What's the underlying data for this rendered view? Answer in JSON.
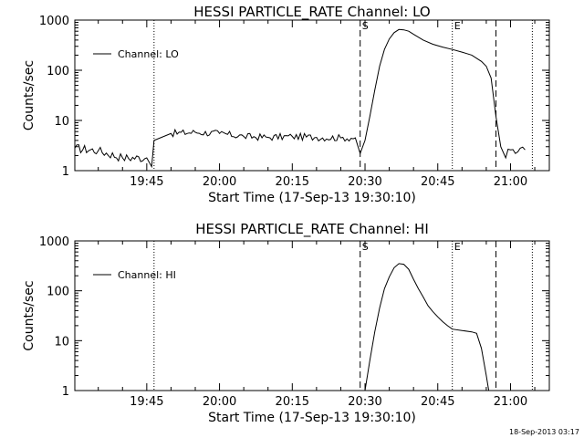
{
  "chart_data": [
    {
      "type": "line",
      "title": "HESSI PARTICLE_RATE Channel: LO",
      "xlabel": "Start Time (17-Sep-13 19:30:10)",
      "ylabel": "Counts/sec",
      "yscale": "log",
      "ylim": [
        1,
        1000
      ],
      "xlim": [
        "19:30:10",
        "21:08:00"
      ],
      "x_ticks": [
        "19:45",
        "20:00",
        "20:15",
        "20:30",
        "20:45",
        "21:00"
      ],
      "y_ticks": [
        "1",
        "10",
        "100",
        "1000"
      ],
      "legend": {
        "position": "top-left",
        "entries": [
          "Channel: LO"
        ]
      },
      "markers": [
        {
          "time": "20:29:00",
          "style": "dashed",
          "label": "S"
        },
        {
          "time": "20:57:00",
          "style": "dashed",
          "label": ""
        },
        {
          "time": "19:46:30",
          "style": "dotted",
          "label": ""
        },
        {
          "time": "20:48:00",
          "style": "dotted",
          "label": "E"
        },
        {
          "time": "21:04:30",
          "style": "dotted",
          "label": ""
        }
      ],
      "series": [
        {
          "name": "Channel: LO",
          "x": [
            "19:30:10",
            "19:35:00",
            "19:40:00",
            "19:45:00",
            "19:46:00",
            "19:46:30",
            "19:50:00",
            "19:55:00",
            "20:00:00",
            "20:05:00",
            "20:10:00",
            "20:15:00",
            "20:20:00",
            "20:25:00",
            "20:28:00",
            "20:29:00",
            "20:30:00",
            "20:31:00",
            "20:32:00",
            "20:33:00",
            "20:34:00",
            "20:35:00",
            "20:36:00",
            "20:37:00",
            "20:38:00",
            "20:39:00",
            "20:40:00",
            "20:42:00",
            "20:44:00",
            "20:46:00",
            "20:48:00",
            "20:50:00",
            "20:52:00",
            "20:54:00",
            "20:55:00",
            "20:56:00",
            "20:57:00",
            "20:58:00",
            "20:59:00",
            "21:00:00",
            "21:01:00",
            "21:02:00",
            "21:03:00"
          ],
          "y": [
            2.8,
            2.5,
            1.8,
            1.8,
            1.2,
            4.0,
            5.5,
            5.8,
            5.5,
            4.8,
            4.6,
            4.8,
            4.6,
            4.5,
            4.5,
            2.2,
            4.0,
            12,
            40,
            120,
            260,
            420,
            560,
            650,
            640,
            600,
            520,
            400,
            330,
            290,
            260,
            230,
            200,
            150,
            120,
            70,
            12,
            3,
            1.8,
            2.6,
            2.2,
            2.8,
            2.6
          ]
        }
      ]
    },
    {
      "type": "line",
      "title": "HESSI PARTICLE_RATE Channel: HI",
      "xlabel": "Start Time (17-Sep-13 19:30:10)",
      "ylabel": "Counts/sec",
      "yscale": "log",
      "ylim": [
        1,
        1000
      ],
      "xlim": [
        "19:30:10",
        "21:08:00"
      ],
      "x_ticks": [
        "19:45",
        "20:00",
        "20:15",
        "20:30",
        "20:45",
        "21:00"
      ],
      "y_ticks": [
        "1",
        "10",
        "100",
        "1000"
      ],
      "legend": {
        "position": "top-left",
        "entries": [
          "Channel: HI"
        ]
      },
      "markers": [
        {
          "time": "20:29:00",
          "style": "dashed",
          "label": "S"
        },
        {
          "time": "20:57:00",
          "style": "dashed",
          "label": ""
        },
        {
          "time": "19:46:30",
          "style": "dotted",
          "label": ""
        },
        {
          "time": "20:48:00",
          "style": "dotted",
          "label": "E"
        },
        {
          "time": "21:04:30",
          "style": "dotted",
          "label": ""
        }
      ],
      "series": [
        {
          "name": "Channel: HI",
          "x": [
            "20:30:00",
            "20:31:00",
            "20:32:00",
            "20:33:00",
            "20:34:00",
            "20:35:00",
            "20:36:00",
            "20:37:00",
            "20:38:00",
            "20:39:00",
            "20:40:00",
            "20:41:00",
            "20:42:00",
            "20:43:00",
            "20:44:00",
            "20:45:00",
            "20:46:00",
            "20:47:00",
            "20:48:00",
            "20:50:00",
            "20:52:00",
            "20:53:00",
            "20:54:00",
            "20:55:00",
            "20:55:30"
          ],
          "y": [
            1,
            4,
            15,
            45,
            110,
            190,
            290,
            350,
            340,
            270,
            170,
            110,
            75,
            50,
            38,
            30,
            24,
            20,
            17,
            16,
            15,
            14,
            7,
            2,
            1
          ]
        }
      ]
    }
  ],
  "footer": {
    "timestamp": "18-Sep-2013 03:17"
  }
}
